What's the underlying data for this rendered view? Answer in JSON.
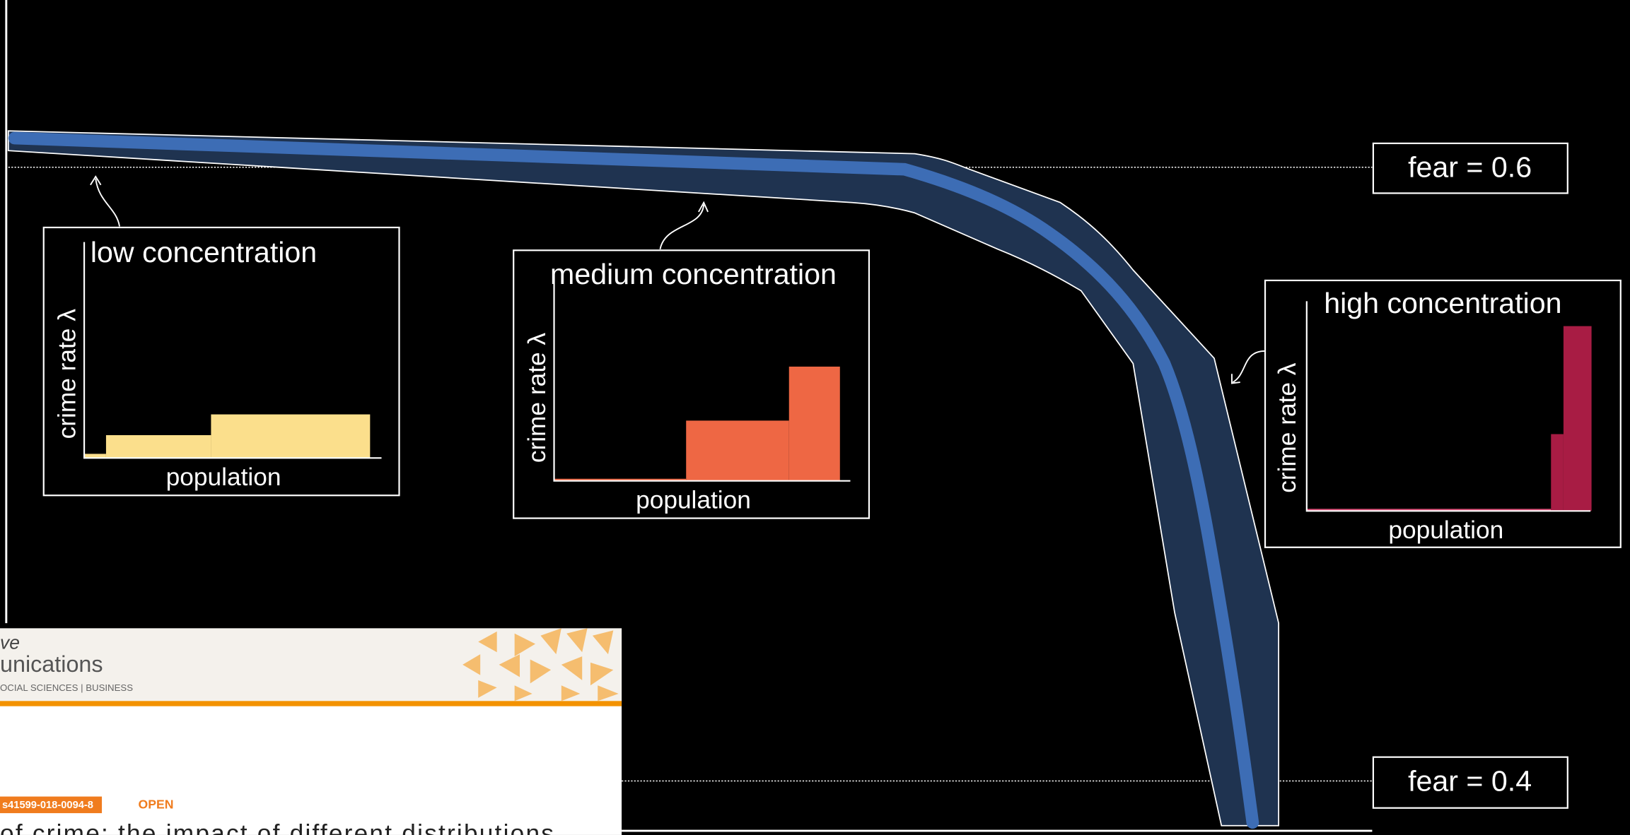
{
  "annotations": {
    "fear_top": "fear = 0.6",
    "fear_bottom": "fear = 0.4"
  },
  "panels": [
    {
      "title": "low concentration",
      "y_label": "crime rate λ",
      "x_label": "population"
    },
    {
      "title": "medium concentration",
      "y_label": "crime rate λ",
      "x_label": "population"
    },
    {
      "title": "high concentration",
      "y_label": "crime rate λ",
      "x_label": "population"
    }
  ],
  "article": {
    "journal_line1": "ve",
    "journal_line2": "unications",
    "subjects": "OCIAL SCIENCES | BUSINESS",
    "doi": "s41599-018-0094-8",
    "access": "OPEN",
    "title": "of crime: the impact of different distributions"
  }
}
